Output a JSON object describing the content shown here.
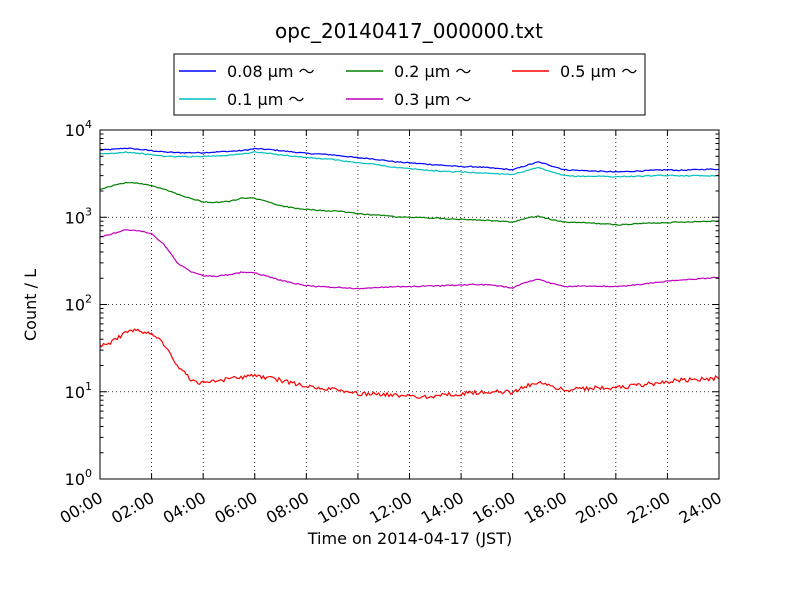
{
  "chart_data": {
    "type": "line",
    "title": "opc_20140417_000000.txt",
    "xlabel": "Time on 2014-04-17 (JST)",
    "ylabel": "Count / L",
    "yscale": "log",
    "ylim": [
      1,
      10000
    ],
    "xlim": [
      "00:00",
      "24:00"
    ],
    "grid": true,
    "legend_position": "top",
    "x_tick_labels": [
      "00:00",
      "02:00",
      "04:00",
      "06:00",
      "08:00",
      "10:00",
      "12:00",
      "14:00",
      "16:00",
      "18:00",
      "20:00",
      "22:00",
      "24:00"
    ],
    "y_tick_labels": [
      {
        "base": "10",
        "exp": "0"
      },
      {
        "base": "10",
        "exp": "1"
      },
      {
        "base": "10",
        "exp": "2"
      },
      {
        "base": "10",
        "exp": "3"
      },
      {
        "base": "10",
        "exp": "4"
      }
    ],
    "x": [
      "00:00",
      "00:30",
      "01:00",
      "01:30",
      "02:00",
      "02:30",
      "03:00",
      "03:30",
      "04:00",
      "04:30",
      "05:00",
      "05:30",
      "06:00",
      "06:30",
      "07:00",
      "07:30",
      "08:00",
      "08:30",
      "09:00",
      "09:30",
      "10:00",
      "10:30",
      "11:00",
      "11:30",
      "12:00",
      "12:30",
      "13:00",
      "13:30",
      "14:00",
      "14:30",
      "15:00",
      "15:30",
      "16:00",
      "16:30",
      "17:00",
      "17:30",
      "18:00",
      "18:30",
      "19:00",
      "19:30",
      "20:00",
      "20:30",
      "21:00",
      "21:30",
      "22:00",
      "22:30",
      "23:00",
      "23:30",
      "24:00"
    ],
    "series": [
      {
        "name": "0.08 μm ～",
        "color": "#0000ff",
        "values": [
          5900,
          6000,
          6200,
          6000,
          5800,
          5600,
          5500,
          5500,
          5500,
          5600,
          5700,
          5800,
          6100,
          6000,
          5800,
          5600,
          5400,
          5300,
          5200,
          5000,
          4800,
          4700,
          4500,
          4300,
          4200,
          4100,
          4000,
          3900,
          3800,
          3800,
          3700,
          3600,
          3500,
          3900,
          4300,
          3900,
          3500,
          3450,
          3400,
          3350,
          3300,
          3350,
          3400,
          3450,
          3500,
          3450,
          3500,
          3550,
          3550
        ]
      },
      {
        "name": "0.1 μm ～",
        "color": "#00bfbf",
        "values": [
          5300,
          5400,
          5600,
          5400,
          5200,
          5000,
          4950,
          4950,
          5000,
          5050,
          5150,
          5300,
          5600,
          5400,
          5200,
          5000,
          4850,
          4700,
          4600,
          4400,
          4200,
          4100,
          3900,
          3700,
          3600,
          3500,
          3400,
          3350,
          3300,
          3250,
          3200,
          3150,
          3100,
          3400,
          3700,
          3300,
          3000,
          2950,
          2950,
          2950,
          2900,
          2950,
          2950,
          3000,
          3000,
          3000,
          3000,
          3000,
          3000
        ]
      },
      {
        "name": "0.2 μm ～",
        "color": "#008000",
        "values": [
          2100,
          2300,
          2500,
          2450,
          2300,
          2100,
          1850,
          1650,
          1500,
          1480,
          1520,
          1650,
          1650,
          1500,
          1350,
          1280,
          1230,
          1200,
          1180,
          1150,
          1100,
          1070,
          1050,
          1010,
          1000,
          990,
          980,
          960,
          950,
          940,
          920,
          900,
          880,
          970,
          1030,
          940,
          880,
          870,
          860,
          840,
          820,
          830,
          850,
          860,
          870,
          880,
          890,
          900,
          910
        ]
      },
      {
        "name": "0.3 μm ～",
        "color": "#bf00bf",
        "values": [
          590,
          650,
          720,
          700,
          650,
          480,
          300,
          240,
          215,
          210,
          220,
          235,
          230,
          210,
          190,
          175,
          165,
          160,
          158,
          155,
          152,
          155,
          158,
          160,
          160,
          162,
          163,
          165,
          167,
          170,
          168,
          162,
          155,
          180,
          195,
          175,
          160,
          162,
          163,
          162,
          160,
          165,
          170,
          178,
          185,
          190,
          195,
          200,
          205
        ]
      },
      {
        "name": "0.5 μm ～",
        "color": "#ff0000",
        "values": [
          33,
          38,
          48,
          50,
          48,
          35,
          20,
          14,
          12.5,
          13,
          14,
          14.5,
          15.5,
          14.5,
          13.5,
          12.5,
          11.5,
          11,
          10.5,
          10,
          9.5,
          9.5,
          9.3,
          9,
          8.8,
          8.8,
          9,
          9.2,
          9.5,
          9.7,
          10,
          10,
          9.8,
          11.5,
          13,
          11.5,
          10.5,
          10.8,
          11,
          11.2,
          11,
          11.5,
          12,
          12.5,
          13,
          13.5,
          14,
          14,
          14.5
        ]
      }
    ]
  }
}
